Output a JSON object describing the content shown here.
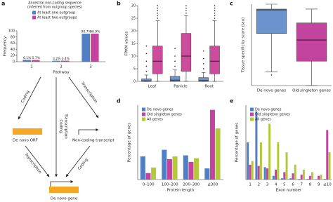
{
  "chart_data": [
    {
      "type": "bar",
      "label": "a",
      "title": "Ancestral non-coding sequence",
      "subtitle": "(inferred from outgroup species)",
      "xlabel": "Pathway",
      "ylabel": "Frequency",
      "categories": [
        "1",
        "2",
        "3"
      ],
      "series": [
        {
          "name": "At least one outgroup",
          "color": "#4f7fc4",
          "values": [
            6.1,
            3.2,
            90.7
          ],
          "value_labels": [
            "6.1%",
            "3.2%",
            "90.7%"
          ]
        },
        {
          "name": "At least two outgroups",
          "color": "#c2449f",
          "values": [
            5.7,
            3.4,
            90.9
          ],
          "value_labels": [
            "5.7%",
            "3.4%",
            "90.9%"
          ]
        }
      ],
      "ylim": [
        0,
        100
      ],
      "yticks": [
        0,
        20,
        40,
        60,
        80,
        100
      ]
    },
    {
      "type": "box",
      "label": "b",
      "ylabel": "FPKM values",
      "categories": [
        "Leaf",
        "Panicle",
        "Root"
      ],
      "series": [
        {
          "color": "#6d93cf",
          "boxes": [
            {
              "whislo": 0,
              "q1": 0,
              "median": 0.2,
              "q3": 1,
              "whishi": 2.5,
              "fliers": [
                4,
                6,
                8,
                11,
                14
              ]
            },
            {
              "whislo": 0,
              "q1": 0,
              "median": 0.5,
              "q3": 2,
              "whishi": 4.5,
              "fliers": [
                6,
                8,
                10,
                13
              ]
            },
            {
              "whislo": 0,
              "q1": 0,
              "median": 0.3,
              "q3": 1.5,
              "whishi": 3.5,
              "fliers": [
                5,
                7,
                9,
                12
              ]
            }
          ]
        },
        {
          "color": "#cc4d9c",
          "boxes": [
            {
              "whislo": 0,
              "q1": 3,
              "median": 8,
              "q3": 14,
              "whishi": 24,
              "fliers": [
                25,
                26,
                27,
                28,
                29,
                30
              ]
            },
            {
              "whislo": 0,
              "q1": 4,
              "median": 10,
              "q3": 19,
              "whishi": 26,
              "fliers": [
                27,
                28,
                29,
                30
              ]
            },
            {
              "whislo": 0,
              "q1": 3,
              "median": 8,
              "q3": 14,
              "whishi": 24,
              "fliers": [
                25,
                26,
                27,
                28,
                29,
                30
              ]
            }
          ]
        }
      ],
      "ylim": [
        0,
        30
      ],
      "yticks": [
        0,
        5,
        10,
        15,
        20,
        25,
        30
      ]
    },
    {
      "type": "box",
      "label": "c",
      "ylabel": "Tissue specificity score (tau)",
      "categories": [
        "De novo genes",
        "Old singleton genes"
      ],
      "series": [
        {
          "color": "#6d93cf",
          "boxes": [
            {
              "whislo": 0.17,
              "q1": 0.64,
              "median": 0.93,
              "q3": 0.94,
              "whishi": 1.0,
              "fliers": [
                0.13
              ]
            },
            null
          ]
        },
        {
          "color": "#c2449f",
          "boxes": [
            null,
            {
              "whislo": 0,
              "q1": 0.3,
              "median": 0.56,
              "q3": 0.77,
              "whishi": 0.94,
              "fliers": []
            }
          ]
        }
      ],
      "ylim": [
        0,
        1
      ]
    },
    {
      "type": "bar",
      "label": "d",
      "xlabel": "Protein length",
      "ylabel": "Percentage of genes",
      "categories": [
        "0–100",
        "100–200",
        "200–300",
        "≤300"
      ],
      "series": [
        {
          "name": "De novo genes",
          "color": "#4f7fc4",
          "values": [
            25,
            32,
            26,
            12
          ]
        },
        {
          "name": "Old singleton genes",
          "color": "#c2449f",
          "values": [
            7,
            22,
            19,
            75
          ]
        },
        {
          "name": "All genes",
          "color": "#b5c73a",
          "values": [
            13,
            25,
            23,
            55
          ]
        }
      ],
      "ylim": [
        0,
        80
      ]
    },
    {
      "type": "bar",
      "label": "e",
      "xlabel": "Exon number",
      "ylabel": "Percentage of genes",
      "categories": [
        "1",
        "2",
        "3",
        "4",
        "5",
        "6",
        "7",
        "8",
        "9",
        "≤10"
      ],
      "series": [
        {
          "name": "De novo genes",
          "color": "#4f7fc4",
          "values": [
            30,
            55,
            10,
            3,
            1,
            1,
            0.5,
            0.5,
            0.3,
            0.5
          ]
        },
        {
          "name": "Old singleton genes",
          "color": "#c2449f",
          "values": [
            12,
            11,
            9,
            8,
            6,
            5,
            4,
            3,
            3,
            40
          ]
        },
        {
          "name": "All genes",
          "color": "#b5c73a",
          "values": [
            15,
            30,
            45,
            30,
            22,
            12,
            8,
            6,
            4,
            22
          ]
        }
      ],
      "ylim": [
        0,
        60
      ]
    }
  ],
  "diagram": {
    "nodes": [
      {
        "label": "De novo ORF"
      },
      {
        "label": "Non-coding transcript"
      },
      {
        "label": "De novo gene"
      }
    ],
    "edges": [
      {
        "label": "Coding"
      },
      {
        "label": "Transcription"
      },
      {
        "label": "Coding"
      },
      {
        "label": "Transcription"
      },
      {
        "label": "Transcription"
      },
      {
        "label": "Coding"
      }
    ]
  }
}
